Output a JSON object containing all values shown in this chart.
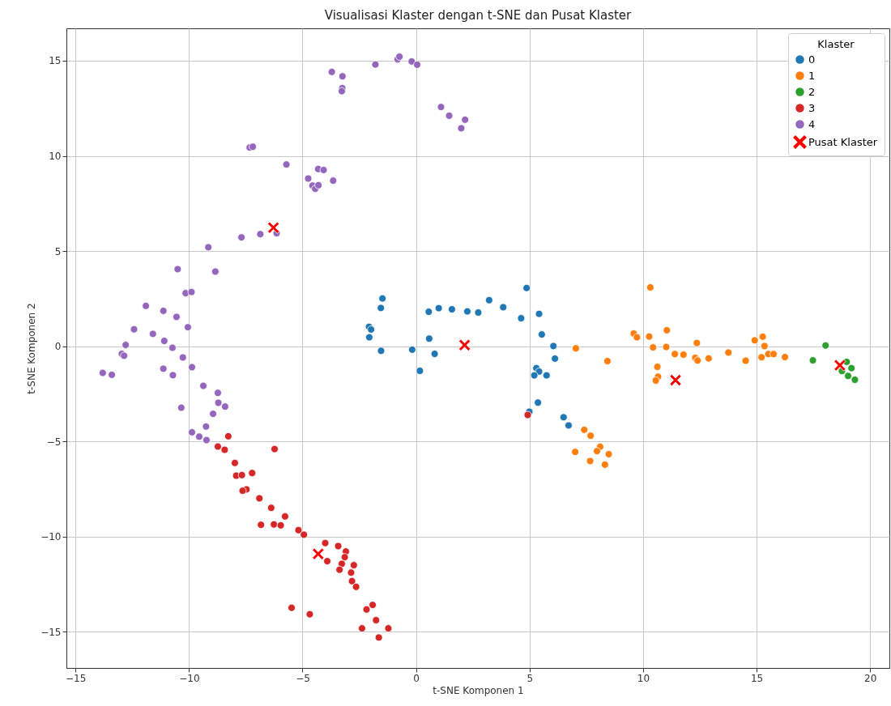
{
  "chart_data": {
    "type": "scatter",
    "title": "Visualisasi Klaster dengan t-SNE dan Pusat Klaster",
    "xlabel": "t-SNE Komponen 1",
    "ylabel": "t-SNE Komponen 2",
    "legend_title": "Klaster",
    "legend": "top right",
    "grid": true,
    "marker": "circle",
    "xlim": [
      -15.4,
      20.85
    ],
    "ylim": [
      -16.9,
      16.7
    ],
    "xticks": [
      -15,
      -10,
      -5,
      0,
      5,
      10,
      15,
      20
    ],
    "yticks": [
      -15,
      -10,
      -5,
      0,
      5,
      10,
      15
    ],
    "series": [
      {
        "name": "0",
        "color": "#1f77b4",
        "x": [
          4.87,
          -1.48,
          -1.55,
          0.56,
          1.0,
          1.58,
          2.26,
          2.74,
          3.22,
          3.84,
          4.63,
          5.42,
          5.54,
          6.05,
          6.12,
          -2.07,
          -1.98,
          -2.06,
          -1.54,
          -0.17,
          0.58,
          0.82,
          0.17,
          5.3,
          5.42,
          5.21,
          5.75,
          5.37,
          4.99,
          6.5,
          6.72
        ],
        "values": [
          3.06,
          2.51,
          2.01,
          1.81,
          2.0,
          1.94,
          1.83,
          1.77,
          2.42,
          2.05,
          1.47,
          1.7,
          0.62,
          0.01,
          -0.65,
          1.02,
          0.88,
          0.47,
          -0.24,
          -0.18,
          0.4,
          -0.4,
          -1.29,
          -1.15,
          -1.33,
          -1.53,
          -1.53,
          -2.96,
          -3.44,
          -3.73,
          -4.16
        ]
      },
      {
        "name": "1",
        "color": "#ff7f0e",
        "x": [
          7.04,
          8.43,
          10.32,
          9.59,
          9.73,
          10.27,
          11.05,
          10.44,
          11.02,
          11.4,
          11.78,
          12.37,
          12.3,
          12.4,
          12.89,
          13.76,
          14.52,
          14.92,
          15.27,
          15.35,
          15.22,
          15.52,
          15.75,
          16.25,
          10.63,
          10.66,
          10.56,
          7.41,
          7.69,
          8.11,
          7.97,
          8.49,
          7.01,
          7.67,
          8.32
        ],
        "values": [
          -0.11,
          -0.78,
          3.09,
          0.67,
          0.47,
          0.51,
          0.84,
          -0.06,
          -0.04,
          -0.41,
          -0.44,
          0.17,
          -0.61,
          -0.75,
          -0.64,
          -0.33,
          -0.76,
          0.31,
          0.5,
          0.01,
          -0.58,
          -0.41,
          -0.41,
          -0.57,
          -1.08,
          -1.6,
          -1.8,
          -4.39,
          -4.7,
          -5.28,
          -5.51,
          -5.67,
          -5.55,
          -6.03,
          -6.22
        ]
      },
      {
        "name": "2",
        "color": "#2ca02c",
        "x": [
          18.04,
          17.48,
          18.97,
          19.18,
          18.76,
          19.03,
          19.33
        ],
        "values": [
          0.04,
          -0.74,
          -0.82,
          -1.15,
          -1.3,
          -1.56,
          -1.76
        ]
      },
      {
        "name": "3",
        "color": "#d62728",
        "x": [
          -8.27,
          -8.73,
          -8.43,
          -6.23,
          -7.98,
          -7.92,
          -7.67,
          -7.22,
          -7.47,
          -7.64,
          -6.9,
          -6.38,
          -5.77,
          -6.83,
          -6.26,
          -5.96,
          -5.18,
          -4.94,
          -4.0,
          -3.43,
          -3.09,
          -3.14,
          -3.91,
          -3.27,
          -2.74,
          -3.37,
          -2.86,
          -2.82,
          -2.64,
          -5.48,
          -4.68,
          -1.91,
          -2.18,
          -1.76,
          -2.38,
          -1.22,
          -1.64,
          4.92
        ],
        "values": [
          -4.73,
          -5.27,
          -5.44,
          -5.4,
          -6.13,
          -6.8,
          -6.77,
          -6.66,
          -7.52,
          -7.59,
          -7.99,
          -8.49,
          -8.94,
          -9.38,
          -9.36,
          -9.41,
          -9.66,
          -9.9,
          -10.34,
          -10.5,
          -10.78,
          -11.08,
          -11.29,
          -11.43,
          -11.5,
          -11.74,
          -11.89,
          -12.34,
          -12.64,
          -13.74,
          -14.08,
          -13.59,
          -13.83,
          -14.39,
          -14.82,
          -14.82,
          -15.3,
          -3.61
        ]
      },
      {
        "name": "4",
        "color": "#9467bd",
        "x": [
          -3.71,
          -3.24,
          -3.25,
          -3.27,
          -1.79,
          -0.81,
          -0.73,
          -0.19,
          0.05,
          1.1,
          1.46,
          2.16,
          1.99,
          -7.33,
          -7.19,
          -5.71,
          -4.75,
          -4.31,
          -4.07,
          -4.56,
          -4.44,
          -4.3,
          -3.65,
          -7.69,
          -6.86,
          -6.14,
          -9.15,
          -10.5,
          -8.84,
          -10.15,
          -9.89,
          -11.9,
          -11.13,
          -10.55,
          -10.05,
          -12.42,
          -11.59,
          -11.09,
          -12.79,
          -12.96,
          -12.86,
          -10.73,
          -10.27,
          -9.87,
          -11.13,
          -10.71,
          -13.8,
          -13.4,
          -9.37,
          -8.73,
          -8.71,
          -8.41,
          -8.94,
          -10.34,
          -9.25,
          -9.87,
          -9.55,
          -9.23
        ],
        "values": [
          14.41,
          14.18,
          13.56,
          13.4,
          14.8,
          15.07,
          15.21,
          14.96,
          14.79,
          12.57,
          12.11,
          11.9,
          11.45,
          10.44,
          10.48,
          9.55,
          8.81,
          9.31,
          9.26,
          8.44,
          8.27,
          8.46,
          8.7,
          5.72,
          5.89,
          5.94,
          5.2,
          4.05,
          3.92,
          2.79,
          2.85,
          2.12,
          1.86,
          1.54,
          1.0,
          0.89,
          0.65,
          0.28,
          0.07,
          -0.4,
          -0.5,
          -0.08,
          -0.59,
          -1.1,
          -1.18,
          -1.52,
          -1.4,
          -1.5,
          -2.08,
          -2.45,
          -2.97,
          -3.17,
          -3.55,
          -3.23,
          -4.22,
          -4.52,
          -4.75,
          -4.93
        ]
      },
      {
        "name": "Pusat Klaster",
        "color": "#ff0000",
        "marker": "cross",
        "x": [
          2.14,
          11.43,
          18.67,
          -4.31,
          -6.28
        ],
        "values": [
          0.06,
          -1.78,
          -1.0,
          -10.91,
          6.23
        ]
      }
    ]
  }
}
